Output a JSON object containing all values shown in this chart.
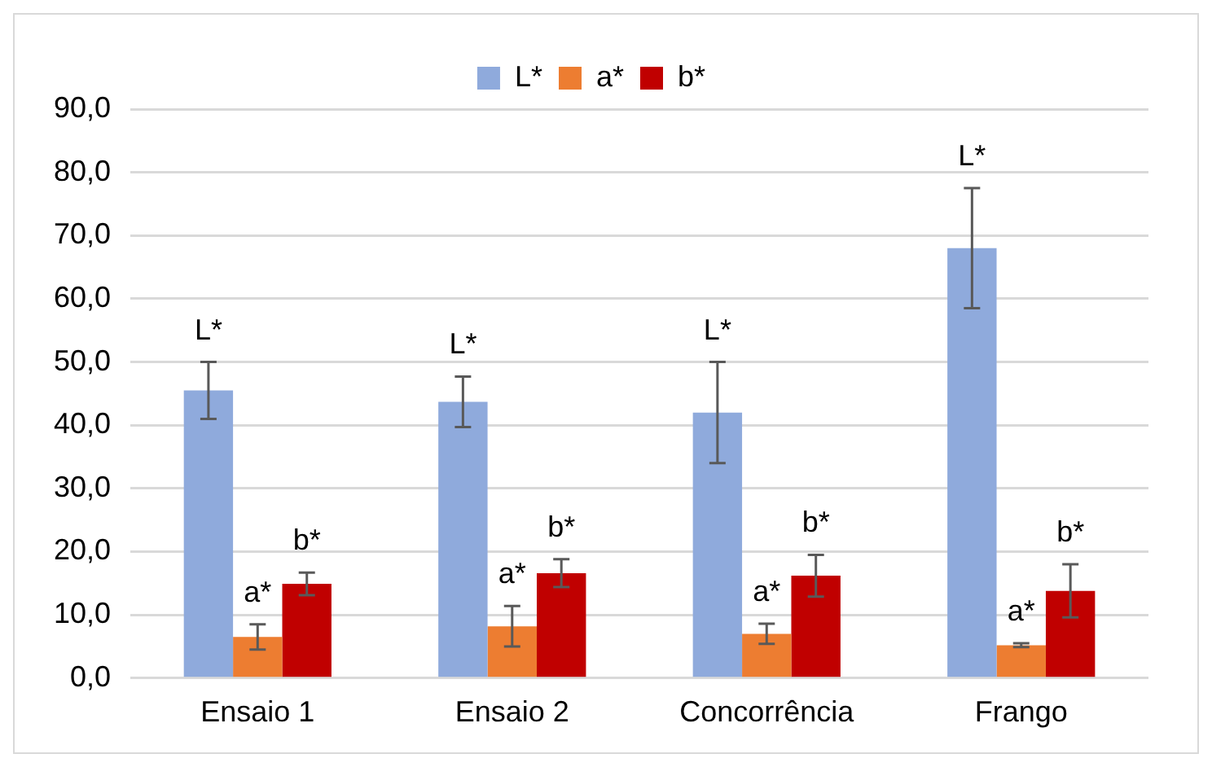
{
  "chart_data": {
    "type": "bar",
    "categories": [
      "Ensaio 1",
      "Ensaio 2",
      "Concorrência",
      "Frango"
    ],
    "series": [
      {
        "name": "L*",
        "color": "#8faadc",
        "values": [
          45.5,
          43.7,
          42.0,
          68.0
        ],
        "errors": [
          4.5,
          4.0,
          8.0,
          9.5
        ],
        "value_labels": [
          "L*",
          "L*",
          "L*",
          "L*"
        ]
      },
      {
        "name": "a*",
        "color": "#ed7d31",
        "values": [
          6.5,
          8.2,
          7.0,
          5.2
        ],
        "errors": [
          2.0,
          3.2,
          1.6,
          0.3
        ],
        "value_labels": [
          "a*",
          "a*",
          "a*",
          "a*"
        ]
      },
      {
        "name": "b*",
        "color": "#c00000",
        "values": [
          14.9,
          16.6,
          16.2,
          13.8
        ],
        "errors": [
          1.8,
          2.2,
          3.3,
          4.2
        ],
        "value_labels": [
          "b*",
          "b*",
          "b*",
          "b*"
        ]
      }
    ],
    "ylim": [
      0,
      90
    ],
    "yticks": [
      {
        "value": 0,
        "label": "0,0"
      },
      {
        "value": 10,
        "label": "10,0"
      },
      {
        "value": 20,
        "label": "20,0"
      },
      {
        "value": 30,
        "label": "30,0"
      },
      {
        "value": 40,
        "label": "40,0"
      },
      {
        "value": 50,
        "label": "50,0"
      },
      {
        "value": 60,
        "label": "60,0"
      },
      {
        "value": 70,
        "label": "70,0"
      },
      {
        "value": 80,
        "label": "80,0"
      },
      {
        "value": 90,
        "label": "90,0"
      }
    ],
    "grid": "y",
    "legend": "top"
  }
}
